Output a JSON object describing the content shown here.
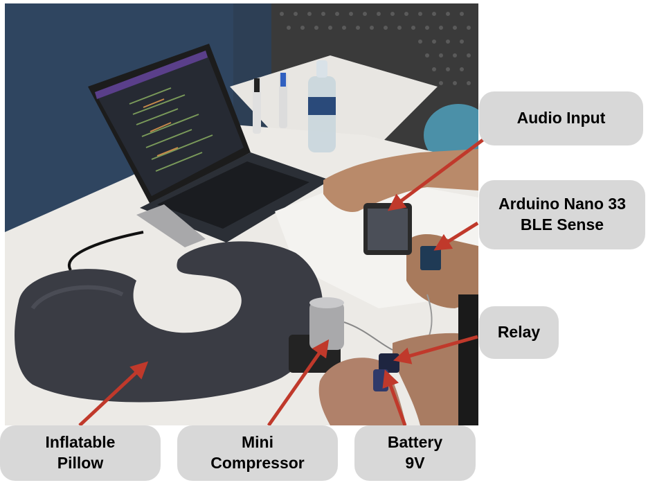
{
  "labels": {
    "audio_input": "Audio Input",
    "arduino": "Arduino Nano 33\nBLE Sense",
    "relay": "Relay",
    "pillow": "Inflatable\nPillow",
    "compressor": "Mini\nCompressor",
    "battery": "Battery\n9V"
  },
  "colors": {
    "label_bg": "#d8d8d8",
    "arrow": "#c0392b"
  }
}
